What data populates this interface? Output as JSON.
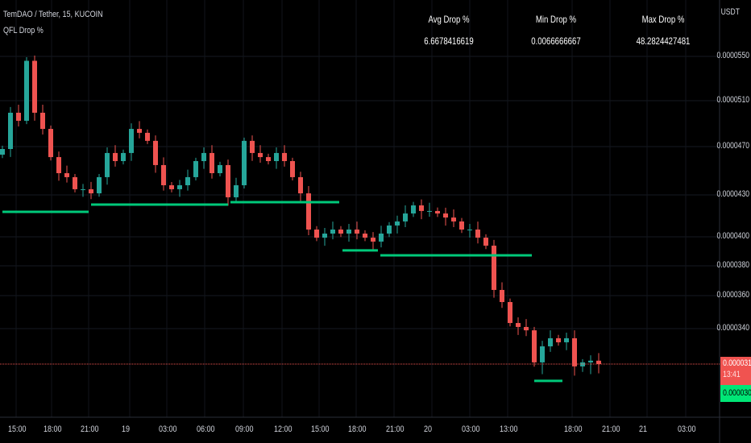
{
  "header": {
    "symbol_title": "TemDAO / Tether, 15, KUCOIN",
    "indicator_name": "QFL Drop %"
  },
  "stats_table": [
    {
      "label": "Avg Drop %",
      "value": "6.6678416619"
    },
    {
      "label": "Min Drop %",
      "value": "0.0066666667"
    },
    {
      "label": "Max Drop %",
      "value": "48.2824427481"
    }
  ],
  "colors": {
    "up": "#26a69a",
    "down": "#ef5350",
    "qfl_line": "#00c97a",
    "last_price": "#f05350",
    "base_label": "#00e676",
    "background": "#000000"
  },
  "chart_data": {
    "type": "candlestick",
    "currency": "USDT",
    "y_ticks": [
      "0.0000550",
      "0.0000510",
      "0.0000470",
      "0.0000430",
      "0.0000400",
      "0.0000380",
      "0.0000360",
      "0.0000340"
    ],
    "x_ticks": [
      "15:00",
      "18:00",
      "21:00",
      "19",
      "03:00",
      "06:00",
      "09:00",
      "12:00",
      "15:00",
      "18:00",
      "21:00",
      "20",
      "03:00",
      "13:00",
      "18:00",
      "21:00",
      "21",
      "03:00"
    ],
    "closes": [
      468,
      499.5,
      492.5,
      546,
      499.5,
      485.4,
      461.3,
      448,
      444.7,
      434.7,
      434.7,
      431.3,
      444.7,
      464.7,
      458,
      464.7,
      485.4,
      482,
      475,
      454.7,
      438,
      434.7,
      438,
      444.7,
      458,
      464.7,
      448,
      454.7,
      428.3,
      438,
      475,
      464.7,
      461.3,
      458,
      464.7,
      458,
      444.7,
      431.3,
      405.2,
      399.4,
      402.3,
      405.2,
      402.3,
      405.2,
      402.3,
      399.4,
      396.7,
      402.3,
      408.1,
      411,
      416.7,
      422.5,
      418.5,
      418.5,
      416.7,
      413.8,
      411,
      405.2,
      405.2,
      399.4,
      393.9,
      363.8,
      356.1,
      343.4,
      341,
      339,
      320,
      329.5,
      334.3,
      331.9,
      334.3,
      318.2,
      320,
      321,
      319
    ],
    "qfl_levels": [
      {
        "price": 417.9,
        "from_index": 0,
        "to_index": 10.7
      },
      {
        "price": 423.1,
        "from_index": 11,
        "to_index": 28
      },
      {
        "price": 424.8,
        "from_index": 28.3,
        "to_index": 41.8
      },
      {
        "price": 390.6,
        "from_index": 42.2,
        "to_index": 46.6
      },
      {
        "price": 387.2,
        "from_index": 46.9,
        "to_index": 65.7
      },
      {
        "price": 313.2,
        "from_index": 66,
        "to_index": 69.5
      }
    ],
    "price_unit_note": "values in 1e-7 USDT",
    "last_price": {
      "label": "0.0000319",
      "countdown": "13:41"
    },
    "base_price": {
      "label": "0.0000309"
    },
    "y_scale": "percent-like (non-linear)",
    "grid": true
  }
}
